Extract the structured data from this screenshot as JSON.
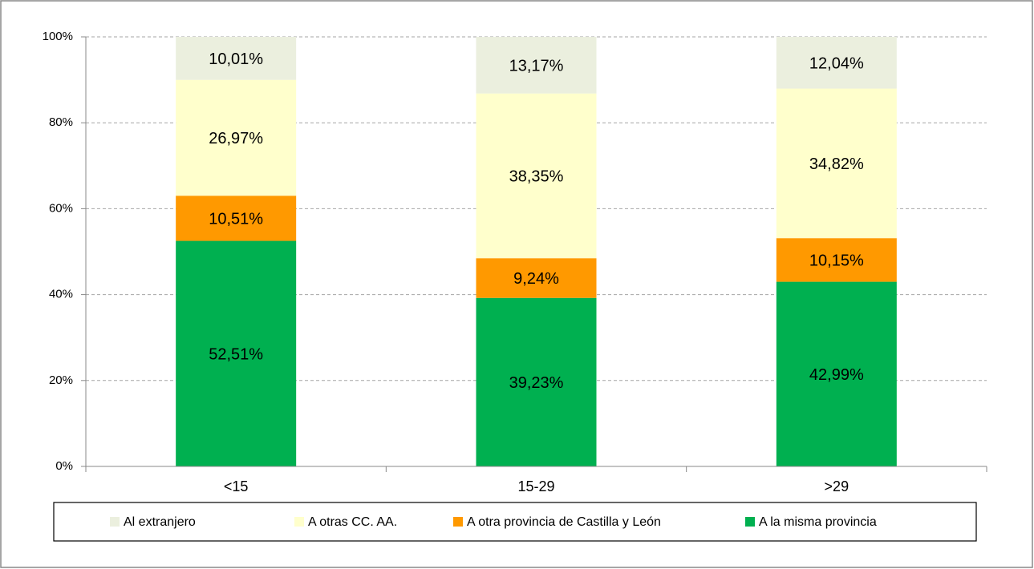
{
  "chart_data": {
    "type": "stacked_bar",
    "categories": [
      "<15",
      "15-29",
      ">29"
    ],
    "series": [
      {
        "name": "A la misma provincia",
        "color": "#00b050",
        "values": [
          52.51,
          39.23,
          42.99
        ],
        "value_labels": [
          "52,51%",
          "39,23%",
          "42,99%"
        ]
      },
      {
        "name": "A otra provincia de Castilla y León",
        "color": "#ff9900",
        "values": [
          10.51,
          9.24,
          10.15
        ],
        "value_labels": [
          "10,51%",
          "9,24%",
          "10,15%"
        ]
      },
      {
        "name": "A otras CC. AA.",
        "color": "#ffffcc",
        "values": [
          26.97,
          38.35,
          34.82
        ],
        "value_labels": [
          "26,97%",
          "38,35%",
          "34,82%"
        ]
      },
      {
        "name": "Al extranjero",
        "color": "#ebefde",
        "values": [
          10.01,
          13.17,
          12.04
        ],
        "value_labels": [
          "10,01%",
          "13,17%",
          "12,04%"
        ]
      }
    ],
    "ylim": [
      0,
      100
    ],
    "yticks": [
      {
        "value": 0,
        "label": "0%"
      },
      {
        "value": 20,
        "label": "20%"
      },
      {
        "value": 40,
        "label": "40%"
      },
      {
        "value": 60,
        "label": "60%"
      },
      {
        "value": 80,
        "label": "80%"
      },
      {
        "value": 100,
        "label": "100%"
      }
    ],
    "grid": true,
    "legend": "bottom"
  }
}
